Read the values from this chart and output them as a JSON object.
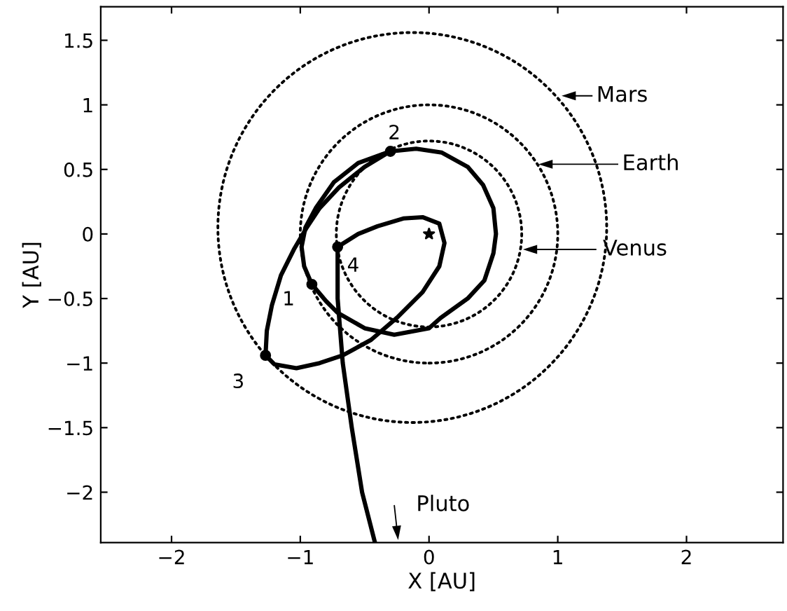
{
  "chart_data": {
    "type": "line",
    "xlabel": "X [AU]",
    "ylabel": "Y [AU]",
    "xlim": [
      -2.55,
      2.75
    ],
    "ylim": [
      -2.39,
      1.76
    ],
    "xticks": [
      {
        "value": -2,
        "label": "−2"
      },
      {
        "value": -1,
        "label": "−1"
      },
      0,
      1,
      2
    ],
    "yticks": [
      {
        "value": -2,
        "label": "−2"
      },
      {
        "value": -1.5,
        "label": "−1.5"
      },
      {
        "value": -1,
        "label": "−1"
      },
      {
        "value": -0.5,
        "label": "−0.5"
      },
      0,
      0.5,
      1,
      1.5
    ],
    "series": [
      {
        "type": "line",
        "line_style": "solid",
        "color": "#000000",
        "x": [
          -0.91,
          -0.8,
          -0.71,
          -0.5,
          -0.27,
          0.0,
          0.09,
          0.3,
          0.43,
          0.5,
          0.52,
          0.5,
          0.42,
          0.3,
          0.1,
          -0.1,
          -0.3,
          -0.5,
          -0.7,
          -0.85,
          -0.95,
          -1.05,
          -1.15,
          -1.22,
          -1.26,
          -1.27,
          -1.2,
          -1.03,
          -0.85,
          -0.67,
          -0.45,
          -0.25,
          -0.05,
          0.08,
          0.12,
          0.08,
          -0.05,
          -0.2,
          -0.4,
          -0.55,
          -0.71,
          -0.71,
          -0.67,
          -0.6,
          -0.52,
          -0.42
        ],
        "values": [
          -0.39,
          -0.52,
          -0.61,
          -0.73,
          -0.78,
          -0.73,
          -0.65,
          -0.5,
          -0.36,
          -0.15,
          0,
          0.2,
          0.38,
          0.52,
          0.63,
          0.66,
          0.64,
          0.52,
          0.36,
          0.2,
          0.05,
          -0.12,
          -0.32,
          -0.55,
          -0.75,
          -0.94,
          -1.01,
          -1.04,
          -1.0,
          -0.94,
          -0.82,
          -0.65,
          -0.45,
          -0.25,
          -0.07,
          0.08,
          0.13,
          0.12,
          0.06,
          0.0,
          -0.1,
          -0.5,
          -1.0,
          -1.5,
          -2.0,
          -2.39
        ]
      },
      {
        "line_style": "solid",
        "color": "#000000",
        "x": [
          -0.91,
          -0.97,
          -0.99,
          -0.96,
          -0.88,
          -0.74,
          -0.55,
          -0.3
        ],
        "values": [
          -0.39,
          -0.25,
          -0.1,
          0.05,
          0.2,
          0.4,
          0.55,
          0.64
        ]
      },
      {
        "type": "scatter",
        "marker": "circle",
        "color": "#000000",
        "x": [
          -0.91,
          -0.3,
          -1.27,
          -0.71
        ],
        "values": [
          -0.39,
          0.64,
          -0.94,
          -0.1
        ]
      },
      {
        "type": "scatter",
        "marker": "star",
        "color": "#000000",
        "x": [
          0
        ],
        "values": [
          0
        ]
      }
    ],
    "annotations": [
      {
        "text": "1",
        "x": -0.91,
        "y": -0.39
      },
      {
        "text": "2",
        "x": -0.3,
        "y": 0.64
      },
      {
        "text": "3",
        "x": -1.27,
        "y": -0.94
      },
      {
        "text": "4",
        "x": -0.71,
        "y": -0.1
      },
      "Mars",
      "Earth",
      "Venus",
      "Pluto"
    ]
  }
}
